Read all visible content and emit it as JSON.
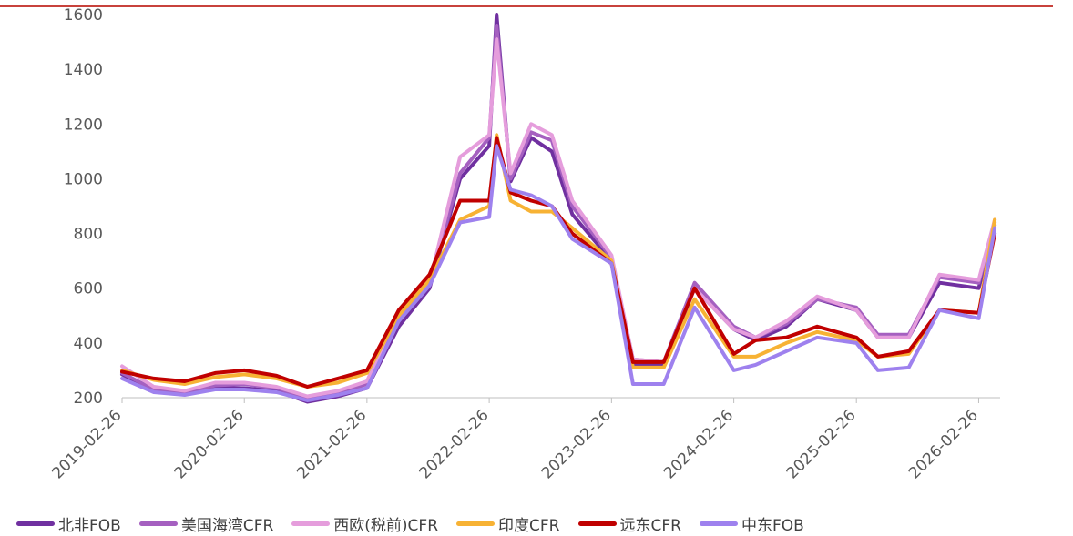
{
  "chart_data": {
    "type": "line",
    "x_axis": {
      "ticks": [
        "2019-02-26",
        "2020-02-26",
        "2021-02-26",
        "2022-02-26",
        "2023-02-26",
        "2024-02-26",
        "2025-02-26",
        "2026-02-26"
      ],
      "range": [
        "2019-02-26",
        "2026-05-01"
      ]
    },
    "y_axis": {
      "ticks": [
        200,
        400,
        600,
        800,
        1000,
        1200,
        1400,
        1600
      ],
      "range": [
        200,
        1600
      ]
    },
    "grid": false,
    "legend_position": "bottom",
    "x_series": [
      "2019-02-26",
      "2019-06-01",
      "2019-09-01",
      "2019-12-01",
      "2020-02-26",
      "2020-06-01",
      "2020-09-01",
      "2020-12-01",
      "2021-02-26",
      "2021-06-01",
      "2021-09-01",
      "2021-12-01",
      "2022-02-26",
      "2022-03-20",
      "2022-05-01",
      "2022-07-01",
      "2022-09-01",
      "2022-11-01",
      "2023-02-26",
      "2023-05-01",
      "2023-08-01",
      "2023-11-01",
      "2024-02-26",
      "2024-05-01",
      "2024-08-01",
      "2024-11-01",
      "2025-02-26",
      "2025-05-01",
      "2025-08-01",
      "2025-11-01",
      "2026-02-26",
      "2026-04-15"
    ],
    "series": [
      {
        "name": "北非FOB",
        "color": "#7030a0",
        "values": [
          285,
          225,
          215,
          235,
          235,
          225,
          185,
          205,
          235,
          460,
          600,
          1000,
          1120,
          1600,
          990,
          1150,
          1100,
          870,
          700,
          320,
          320,
          600,
          450,
          410,
          460,
          560,
          520,
          420,
          420,
          620,
          600,
          830
        ]
      },
      {
        "name": "美国海湾CFR",
        "color": "#a560c0",
        "values": [
          290,
          230,
          220,
          245,
          250,
          235,
          200,
          215,
          250,
          500,
          610,
          1020,
          1150,
          1560,
          1000,
          1170,
          1140,
          900,
          710,
          340,
          330,
          620,
          460,
          420,
          470,
          560,
          530,
          430,
          430,
          640,
          620,
          840
        ]
      },
      {
        "name": "西欧(税前)CFR",
        "color": "#e59ddc",
        "values": [
          315,
          240,
          225,
          255,
          255,
          240,
          205,
          225,
          260,
          520,
          620,
          1080,
          1160,
          1510,
          1020,
          1200,
          1160,
          920,
          720,
          340,
          330,
          600,
          450,
          420,
          480,
          570,
          520,
          420,
          420,
          650,
          630,
          850
        ]
      },
      {
        "name": "印度CFR",
        "color": "#f7b234",
        "values": [
          300,
          265,
          250,
          275,
          285,
          270,
          240,
          255,
          290,
          500,
          630,
          850,
          900,
          1160,
          920,
          880,
          880,
          820,
          700,
          310,
          310,
          560,
          350,
          350,
          400,
          440,
          410,
          350,
          360,
          520,
          510,
          850
        ]
      },
      {
        "name": "远东CFR",
        "color": "#c00000",
        "values": [
          295,
          270,
          260,
          290,
          300,
          280,
          240,
          270,
          300,
          520,
          650,
          920,
          920,
          1150,
          950,
          920,
          900,
          800,
          690,
          330,
          330,
          600,
          360,
          410,
          420,
          460,
          420,
          350,
          370,
          520,
          510,
          800
        ]
      },
      {
        "name": "中东FOB",
        "color": "#9e81ee",
        "values": [
          270,
          220,
          210,
          230,
          230,
          220,
          190,
          210,
          235,
          480,
          610,
          840,
          860,
          1120,
          960,
          940,
          900,
          780,
          690,
          250,
          250,
          530,
          300,
          320,
          370,
          420,
          400,
          300,
          310,
          520,
          490,
          820
        ]
      }
    ]
  }
}
